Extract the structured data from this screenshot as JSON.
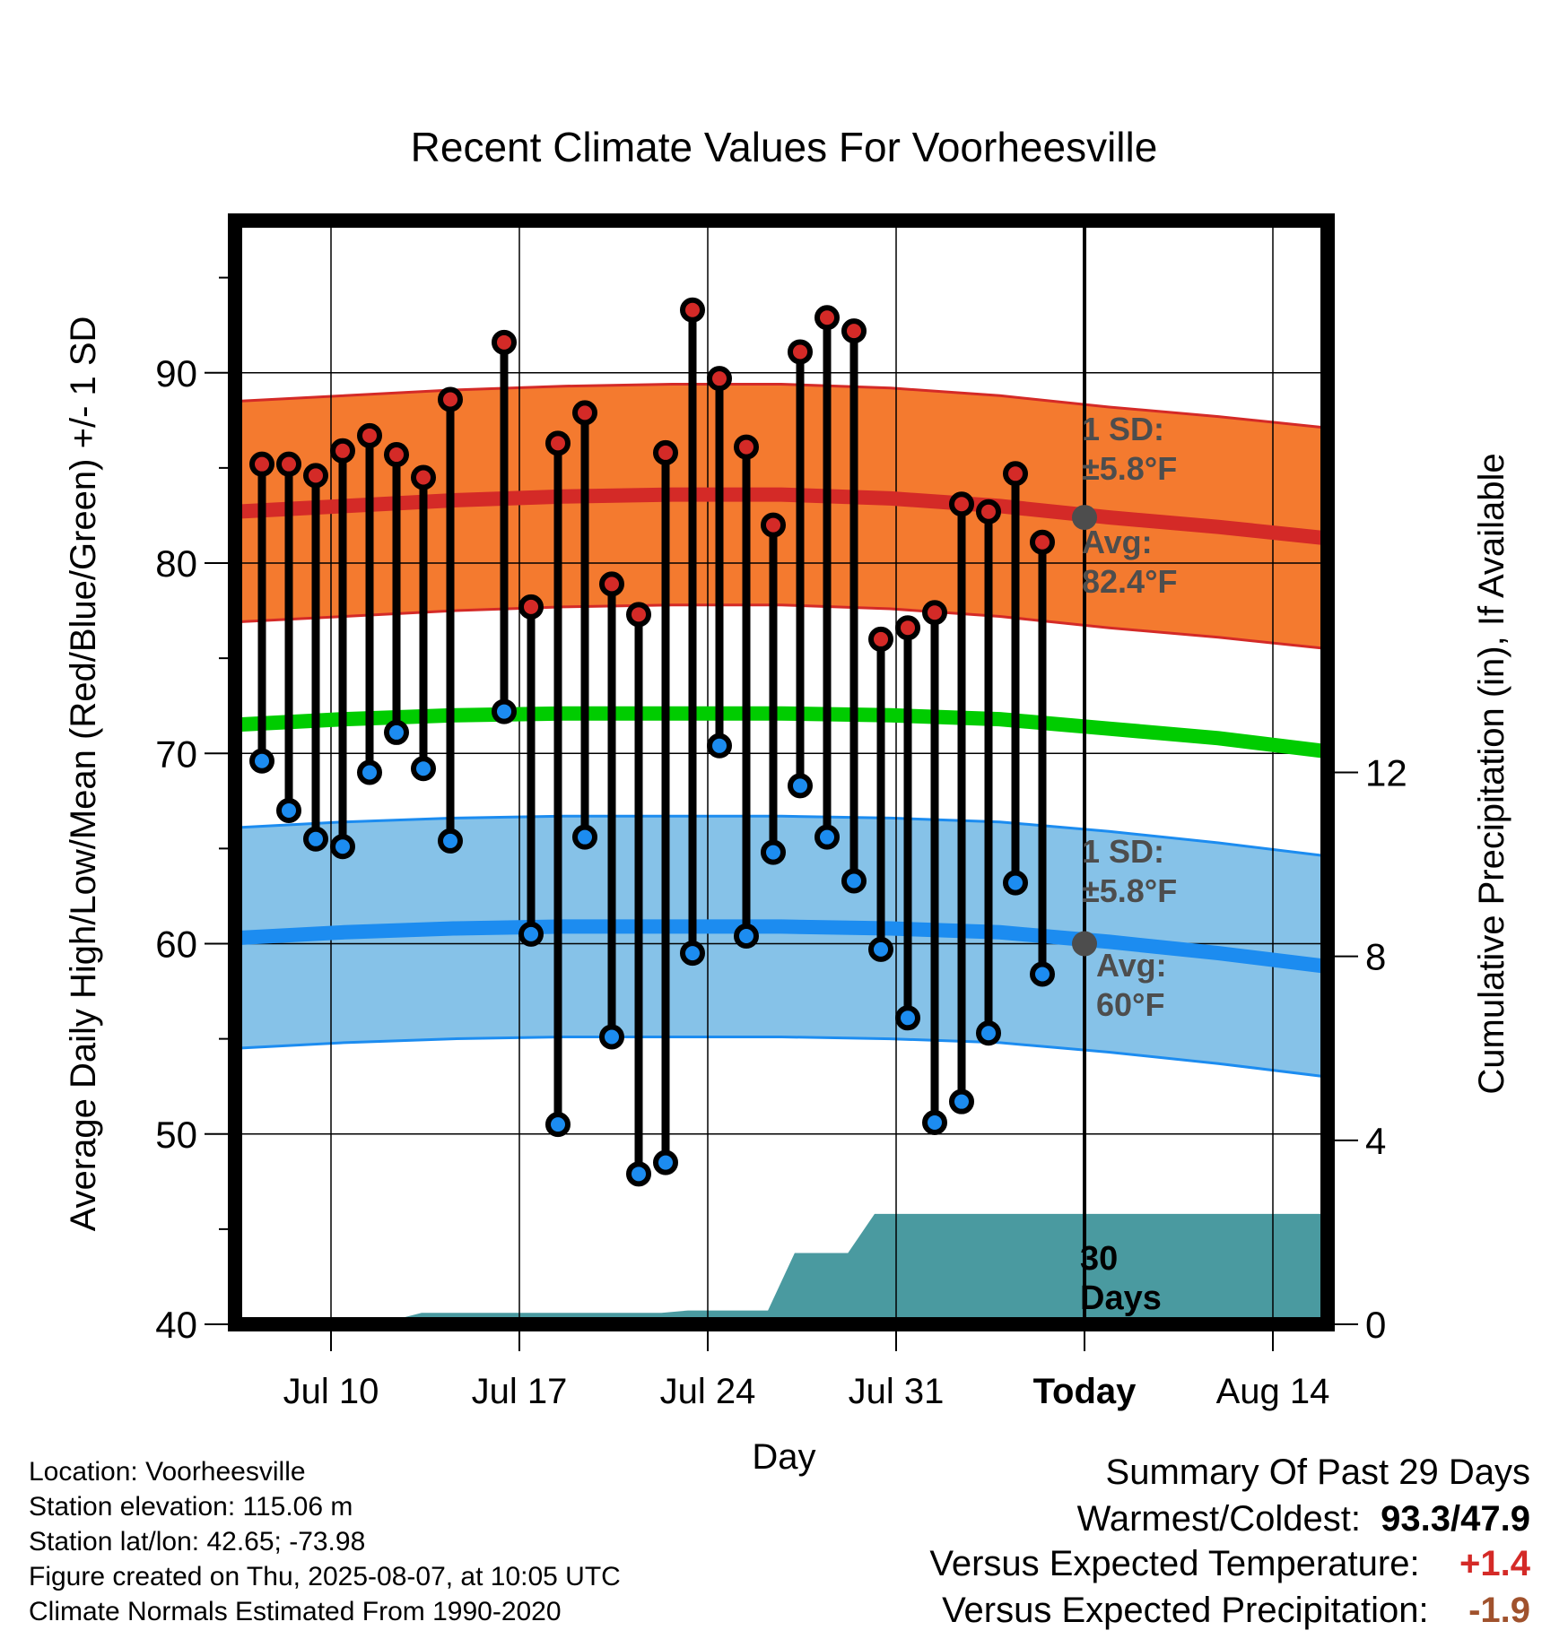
{
  "chart_data": {
    "type": "line",
    "title": "Recent Climate Values For Voorheesville",
    "xlabel": "Day",
    "ylabel": "Average Daily High/Low/Mean (Red/Blue/Green) +/- 1 SD",
    "y2label": "Cumulative Precipitation (in), If Available",
    "ylim": [
      40,
      98
    ],
    "y2lim": [
      0,
      24
    ],
    "y_ticks": [
      "40",
      "50",
      "60",
      "70",
      "80",
      "90"
    ],
    "y2_ticks": [
      "0",
      "4",
      "8",
      "12"
    ],
    "x_ticks": [
      "Jul 10",
      "Jul 17",
      "Jul 24",
      "Jul 31",
      "Today",
      "Aug 14"
    ],
    "grid": true,
    "highs": [
      85.2,
      85.2,
      84.6,
      85.9,
      86.7,
      85.7,
      84.5,
      88.6,
      null,
      91.6,
      77.7,
      86.3,
      87.9,
      78.9,
      77.3,
      85.8,
      93.3,
      89.7,
      86.1,
      82.0,
      91.1,
      92.9,
      92.2,
      76.0,
      76.6,
      77.4,
      83.1,
      82.7,
      84.7,
      81.1
    ],
    "lows": [
      69.6,
      67.0,
      65.5,
      65.1,
      69.0,
      71.1,
      69.2,
      65.4,
      null,
      72.2,
      60.5,
      50.5,
      65.6,
      55.1,
      47.9,
      48.5,
      59.5,
      70.4,
      60.4,
      64.8,
      68.3,
      65.6,
      63.3,
      59.7,
      56.1,
      50.6,
      51.7,
      55.3,
      63.2,
      58.4
    ],
    "normal_high": {
      "label": "Avg:",
      "value": "82.4°F",
      "sd": "±5.8°F",
      "sd_label": "1 SD:",
      "curve": [
        82.7,
        83.0,
        83.3,
        83.5,
        83.6,
        83.6,
        83.4,
        83.0,
        82.4,
        81.9,
        81.3
      ]
    },
    "normal_low": {
      "label": "Avg:",
      "value": "60°F",
      "sd": "±5.8°F",
      "sd_label": "1 SD:",
      "curve": [
        60.3,
        60.6,
        60.8,
        60.9,
        60.9,
        60.9,
        60.8,
        60.6,
        60.1,
        59.5,
        58.8
      ]
    },
    "normal_mean": [
      71.5,
      71.8,
      72.0,
      72.1,
      72.1,
      72.1,
      72.0,
      71.8,
      71.3,
      70.8,
      70.1
    ],
    "sd": 5.8,
    "precip_cumulative": [
      0,
      0,
      0,
      0,
      0,
      0.1,
      0.1,
      0.25,
      0.25,
      0.25,
      0.25,
      0.25,
      0.25,
      0.25,
      0.25,
      0.25,
      0.25,
      0.3,
      0.3,
      0.3,
      0.3,
      1.55,
      1.55,
      1.55,
      2.4,
      2.4,
      2.4,
      2.4,
      2.4,
      2.4,
      2.4,
      2.4,
      2.4,
      2.4,
      2.4,
      2.4,
      2.4,
      2.4,
      2.4,
      2.4,
      2.4,
      2.4
    ],
    "precip_label": "30\nDays"
  },
  "footer": {
    "location": "Location: Voorheesville",
    "elevation": "Station elevation: 115.06 m",
    "latlon": "Station lat/lon: 42.65; -73.98",
    "created": "Figure created on Thu, 2025-08-07, at 10:05 UTC",
    "normals": "Climate Normals Estimated From 1990-2020"
  },
  "summary": {
    "title": "Summary Of Past 29 Days",
    "warm_label": "Warmest/Coldest:",
    "warm_value": "93.3/47.9",
    "temp_label": "Versus Expected Temperature:",
    "temp_value": "+1.4",
    "precip_label": "Versus Expected Precipitation:",
    "precip_value": "-1.9"
  },
  "colors": {
    "high_band": "#f47a2f",
    "high_line": "#d42a27",
    "low_band": "#86c2e8",
    "low_line": "#1c8cf0",
    "mean_line": "#00cc00",
    "precip": "#4a9aa0",
    "high_dot": "#d42a27",
    "low_dot": "#1c8cf0",
    "annotation": "#4d4d4d",
    "temp_anom": "#d42a27",
    "precip_anom": "#a0522d"
  }
}
